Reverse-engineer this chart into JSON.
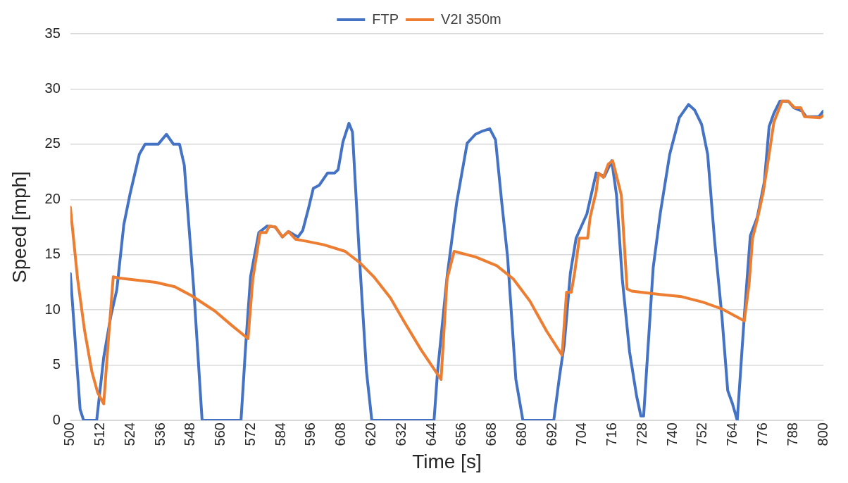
{
  "chart_data": {
    "type": "line",
    "xlabel": "Time [s]",
    "ylabel": "Speed [mph]",
    "xlim": [
      500,
      800
    ],
    "xticks": [
      500,
      512,
      524,
      536,
      548,
      560,
      572,
      584,
      596,
      608,
      620,
      632,
      644,
      656,
      668,
      680,
      692,
      704,
      716,
      728,
      740,
      752,
      764,
      776,
      788,
      800
    ],
    "ylim": [
      0,
      35
    ],
    "yticks": [
      0,
      5,
      10,
      15,
      20,
      25,
      30,
      35
    ],
    "grid": "y",
    "legend": "top",
    "marker": "none",
    "line_style": "solid",
    "series": [
      {
        "name": "FTP",
        "color": "#4472c4",
        "x": [
          500,
          503.9,
          505.3,
          510.5,
          513.3,
          516.1,
          518.5,
          521.3,
          523.7,
          527.5,
          529.8,
          535,
          538.3,
          541.1,
          543.5,
          545.4,
          549.2,
          552.5,
          568,
          569.9,
          571.8,
          575.1,
          578.4,
          581.7,
          584.5,
          586.9,
          590.7,
          592.6,
          594.9,
          596.8,
          599.2,
          602.5,
          605.3,
          606.7,
          608.6,
          611,
          612.4,
          615.3,
          618,
          620.1,
          644.9,
          646.3,
          650.1,
          653.9,
          658.1,
          661.4,
          664.3,
          667.1,
          669.4,
          671.8,
          674.2,
          677.5,
          680.3,
          692.6,
          694.9,
          696.8,
          699.2,
          701.5,
          705.8,
          709.5,
          712.8,
          715.7,
          717.6,
          719.9,
          722.8,
          725.6,
          727.3,
          728.4,
          732.2,
          735,
          738.8,
          742.6,
          746.3,
          748.7,
          751.5,
          753.9,
          756.7,
          759.6,
          761.9,
          763.8,
          765.7,
          768.5,
          770.9,
          773.7,
          776.5,
          778.4,
          780.3,
          782.7,
          786,
          788.3,
          791.6,
          793.1,
          798.2,
          800
        ],
        "values": [
          13.3,
          1,
          0,
          0,
          5.7,
          9.4,
          11.8,
          17.7,
          20.4,
          24.1,
          25,
          25,
          25.9,
          25,
          25,
          23.1,
          11.8,
          0,
          0,
          6.9,
          13,
          17,
          17.6,
          17.5,
          16.6,
          17.1,
          16.6,
          17.2,
          19.2,
          21,
          21.3,
          22.4,
          22.4,
          22.7,
          25.2,
          26.9,
          26.1,
          14.3,
          4.4,
          0,
          0,
          4.4,
          13,
          19.7,
          25.1,
          25.9,
          26.2,
          26.4,
          25.4,
          19.9,
          14.8,
          3.7,
          0,
          0,
          4,
          6.9,
          13.3,
          16.5,
          18.7,
          22.4,
          22.1,
          23.5,
          20.4,
          12.8,
          6.2,
          2.2,
          0.4,
          0.4,
          13.8,
          18.7,
          24.1,
          27.4,
          28.6,
          28.1,
          26.8,
          24.1,
          16.2,
          9.4,
          2.7,
          1.5,
          0,
          9.4,
          16.7,
          18.4,
          21.6,
          26.6,
          27.8,
          28.9,
          28.9,
          28.3,
          28,
          27.5,
          27.5,
          28
        ]
      },
      {
        "name": "V2I 350m",
        "color": "#ed7d31",
        "x": [
          500,
          502.9,
          505.7,
          508.6,
          510.9,
          513.3,
          515.2,
          517.1,
          519,
          534,
          541.6,
          548.2,
          557.6,
          564.3,
          570.8,
          572.7,
          575.6,
          578,
          579.3,
          581.7,
          584.5,
          586.9,
          589.7,
          594.4,
          601,
          609.5,
          615.2,
          620.9,
          627.5,
          633.1,
          639.7,
          647.7,
          650.1,
          652.9,
          661.4,
          669.9,
          676.5,
          683.1,
          689.7,
          695.9,
          697.7,
          699.6,
          701,
          702.8,
          706.1,
          707.1,
          709.5,
          710.4,
          712.4,
          714.3,
          716.1,
          719.5,
          721.8,
          723.7,
          735,
          743.5,
          752,
          759.5,
          768.5,
          770.4,
          771.8,
          773.7,
          776.1,
          778.4,
          780.3,
          782.7,
          783.5,
          786,
          788.6,
          791,
          792.5,
          798.7,
          800
        ],
        "values": [
          19.3,
          12.8,
          8.1,
          4.4,
          2.5,
          1.5,
          7.4,
          13,
          12.9,
          12.5,
          12.1,
          11.3,
          9.9,
          8.6,
          7.4,
          12.8,
          17,
          17,
          17.6,
          17.5,
          16.6,
          17.1,
          16.4,
          16.2,
          15.9,
          15.3,
          14.3,
          13,
          11.1,
          8.9,
          6.4,
          3.7,
          12.8,
          15.3,
          14.8,
          14,
          12.8,
          10.8,
          8.1,
          5.9,
          11.6,
          11.6,
          13.5,
          16.5,
          16.5,
          18.4,
          20.7,
          22.4,
          22,
          23.2,
          23.5,
          20.4,
          11.9,
          11.7,
          11.4,
          11.2,
          10.7,
          10.1,
          9,
          12.3,
          16.5,
          18.2,
          20.7,
          24.1,
          27,
          28.4,
          28.9,
          28.9,
          28.3,
          28.3,
          27.5,
          27.4,
          27.6
        ]
      }
    ]
  }
}
